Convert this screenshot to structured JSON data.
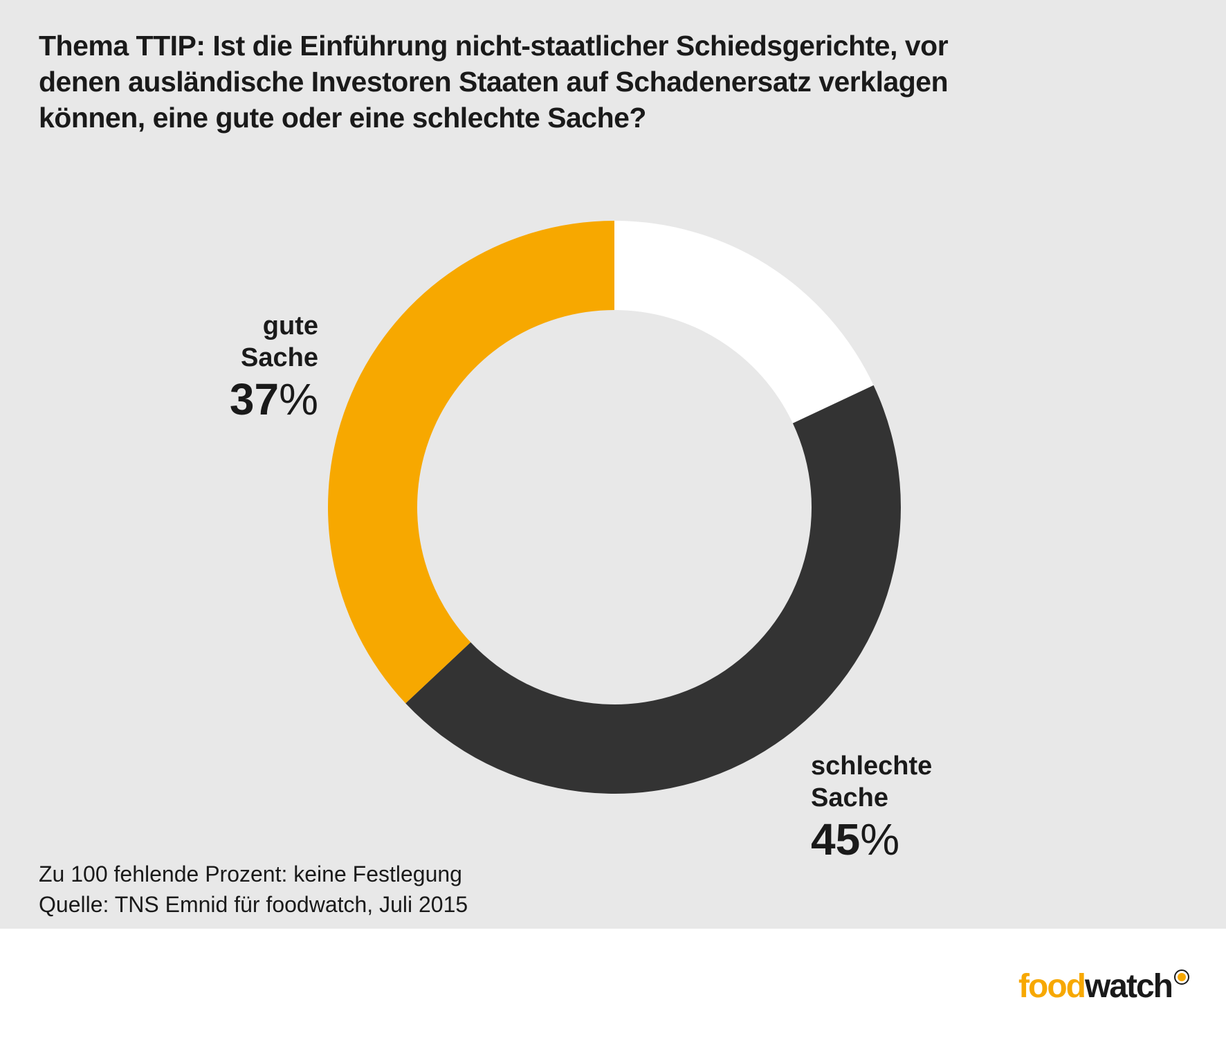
{
  "title": "Thema TTIP: Ist die Einführung nicht-staatlicher Schiedsgerichte, vor denen ausländische Investoren Staaten auf Schadenersatz verklagen können, eine gute oder eine schlechte Sache?",
  "chart_data": {
    "type": "pie",
    "variant": "donut",
    "title": "Thema TTIP: Ist die Einführung nicht-staatlicher Schiedsgerichte, vor denen ausländische Investoren Staaten auf Schadenersatz verklagen können, eine gute oder eine schlechte Sache?",
    "slices": [
      {
        "label": "schlechte Sache",
        "value": 45,
        "display": "45",
        "color": "#333333"
      },
      {
        "label": "gute Sache",
        "value": 37,
        "display": "37",
        "color": "#f7a800"
      },
      {
        "label": "keine Festlegung",
        "value": 18,
        "color": "#ffffff"
      }
    ],
    "unit": "%",
    "start": "top",
    "direction": "clockwise from the white segment"
  },
  "labels": {
    "gute_name": "gute\nSache",
    "gute_value": "37",
    "schlecht_name": "schlechte\nSache",
    "schlecht_value": "45",
    "percent_sign": "%"
  },
  "footnote": {
    "line1": "Zu 100 fehlende Prozent: keine Festlegung",
    "line2": "Quelle: TNS Emnid für foodwatch, Juli 2015"
  },
  "logo": {
    "part1": "food",
    "part2": "watch",
    "color_food": "#f7a800",
    "color_watch": "#1a1a1a"
  },
  "colors": {
    "background": "#e8e8e8",
    "accent": "#f7a800",
    "dark": "#333333"
  }
}
